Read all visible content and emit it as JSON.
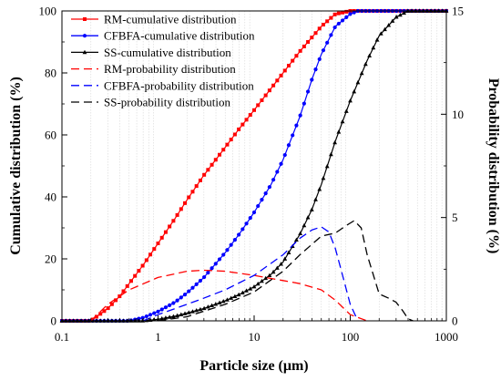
{
  "chart_data": {
    "type": "line",
    "xlabel": "Particle size (μm)",
    "ylabel_left": "Cumulative distribution (%)",
    "ylabel_right": "Probability distribution (%)",
    "x_scale": "log",
    "xlim": [
      0.1,
      1000
    ],
    "ylim_left": [
      0,
      100
    ],
    "ylim_right": [
      0,
      15
    ],
    "x_ticks": [
      0.1,
      1,
      10,
      100,
      1000
    ],
    "x_tick_labels": [
      "0.1",
      "1",
      "10",
      "100",
      "1000"
    ],
    "y_left_ticks": [
      0,
      20,
      40,
      60,
      80,
      100
    ],
    "y_left_tick_labels": [
      "0",
      "20",
      "40",
      "60",
      "80",
      "100"
    ],
    "y_right_ticks": [
      0,
      5,
      10,
      15
    ],
    "y_right_tick_labels": [
      "0",
      "5",
      "10",
      "15"
    ],
    "grid": true,
    "legend_position": "top-left",
    "series": [
      {
        "name": "RM-cumulative distribution",
        "axis": "left",
        "color": "#ff0000",
        "line_style": "solid",
        "marker": "square",
        "x": [
          0.1,
          0.2,
          0.3,
          0.4,
          0.5,
          0.7,
          1,
          1.5,
          2,
          3,
          5,
          7,
          10,
          15,
          20,
          30,
          50,
          70,
          100,
          150,
          200,
          500,
          1000
        ],
        "y": [
          0,
          0,
          4,
          8,
          12,
          18,
          25,
          33,
          39,
          47,
          56,
          62,
          68,
          75,
          80,
          87,
          95,
          99,
          100,
          100,
          100,
          100,
          100
        ]
      },
      {
        "name": "CFBFA-cumulative distribution",
        "axis": "left",
        "color": "#0000ff",
        "line_style": "solid",
        "marker": "circle",
        "x": [
          0.1,
          0.5,
          0.7,
          1,
          1.5,
          2,
          3,
          5,
          7,
          10,
          15,
          20,
          30,
          40,
          50,
          70,
          100,
          120,
          150,
          200,
          500,
          1000
        ],
        "y": [
          0,
          0,
          1,
          3,
          6,
          9,
          14,
          22,
          28,
          35,
          44,
          52,
          66,
          78,
          86,
          95,
          99,
          100,
          100,
          100,
          100,
          100
        ]
      },
      {
        "name": "SS-cumulative distribution",
        "axis": "left",
        "color": "#000000",
        "line_style": "solid",
        "marker": "triangle",
        "x": [
          0.1,
          0.7,
          1,
          1.5,
          2,
          3,
          5,
          7,
          10,
          15,
          20,
          30,
          40,
          50,
          70,
          100,
          150,
          200,
          300,
          400,
          500,
          1000
        ],
        "y": [
          0,
          0,
          0.5,
          1.5,
          2.5,
          4,
          6.5,
          8.5,
          11,
          15,
          19,
          28,
          36,
          44,
          58,
          71,
          84,
          92,
          98,
          100,
          100,
          100
        ]
      },
      {
        "name": "RM-probability distribution",
        "axis": "right",
        "color": "#ff0000",
        "line_style": "dash",
        "marker": "none",
        "x": [
          0.2,
          0.3,
          0.5,
          1,
          2,
          3,
          5,
          10,
          15,
          20,
          30,
          50,
          70,
          100,
          150
        ],
        "y": [
          0,
          0.8,
          1.5,
          2.1,
          2.4,
          2.45,
          2.4,
          2.2,
          2.05,
          1.95,
          1.8,
          1.5,
          1.0,
          0.3,
          0
        ]
      },
      {
        "name": "CFBFA-probability distribution",
        "axis": "right",
        "color": "#0000ff",
        "line_style": "dash",
        "marker": "none",
        "x": [
          0.7,
          1,
          2,
          3,
          5,
          10,
          20,
          30,
          40,
          50,
          60,
          70,
          80,
          100,
          120
        ],
        "y": [
          0,
          0.3,
          0.8,
          1.1,
          1.5,
          2.2,
          3.2,
          4.0,
          4.4,
          4.55,
          4.3,
          3.5,
          2.5,
          0.8,
          0
        ]
      },
      {
        "name": "SS-probability distribution",
        "axis": "right",
        "color": "#000000",
        "line_style": "dash",
        "marker": "none",
        "x": [
          1,
          2,
          5,
          10,
          20,
          30,
          50,
          70,
          90,
          110,
          130,
          150,
          200,
          250,
          300,
          350,
          400,
          450
        ],
        "y": [
          0,
          0.2,
          0.8,
          1.4,
          2.4,
          3.2,
          4.1,
          4.25,
          4.6,
          4.85,
          4.5,
          3.2,
          1.3,
          1.1,
          0.9,
          0.5,
          0.1,
          0
        ]
      }
    ]
  }
}
